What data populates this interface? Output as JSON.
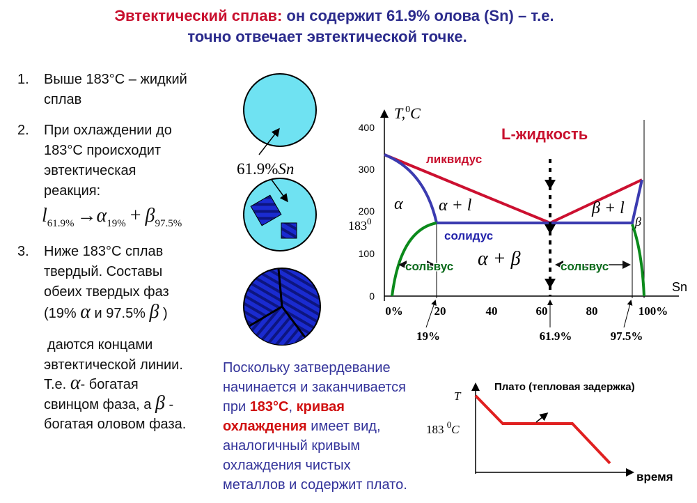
{
  "title": {
    "line1_red": "Эвтектический сплав:",
    "line1_blue": "он содержит 61.9% олова (Sn) – т.е.",
    "line2": "точно отвечает эвтектической точке."
  },
  "list": {
    "item1": {
      "number": "1.",
      "lines": [
        "Выше 183°С – жидкий",
        "сплав"
      ]
    },
    "item2": {
      "number": "2.",
      "lines": [
        "При охлаждении до",
        "183°С происходит",
        "эвтектическая",
        "реакция:"
      ]
    },
    "formula": {
      "liquid": "l",
      "liquid_sub": "61.9%",
      "arrow": "→",
      "alpha": "α",
      "alpha_sub": "19%",
      "plus": "+",
      "beta": "β",
      "beta_sub": "97.5%"
    },
    "item3": {
      "number": "3.",
      "lines": [
        "Ниже 183°С сплав",
        "твердый. Составы",
        "обеих твердых фаз"
      ],
      "composition": [
        "(19%",
        "α",
        "и 97.5%",
        "β",
        ")"
      ]
    },
    "continuation": {
      "lines": [
        "даются концами",
        "эвтектической линии."
      ],
      "line3": [
        "Т.е.",
        "α",
        "- богатая"
      ],
      "line4": [
        "свинцом фаза, а",
        "β",
        "-"
      ],
      "line5": "богатая оловом фаза."
    }
  },
  "micro_label": {
    "composition": "61.9%",
    "element": "Sn"
  },
  "phase_diagram": {
    "y_axis_label": {
      "symbol": "T,",
      "degree": "0",
      "unit": "C"
    },
    "y_ticks": [
      "400",
      "300",
      "200",
      "100",
      "0"
    ],
    "eutectic_temperature": {
      "value": "183",
      "degree": "0"
    },
    "x_ticks": [
      "0%",
      "20",
      "40",
      "60",
      "80",
      "100%"
    ],
    "x_axis_label": "Sn",
    "markers": [
      "19%",
      "61.9%",
      "97.5%"
    ],
    "labels": {
      "liquid": "L-жидкость",
      "liquidus": "ликвидус",
      "solidus": "солидус",
      "solvus_left": "сольвус",
      "solvus_right": "сольвус",
      "alpha": "α",
      "alpha_liquid": "α + l",
      "beta_liquid": "β + l",
      "beta": "β",
      "alpha_beta": "α + β"
    }
  },
  "explanation": {
    "line1": "Поскольку затвердевание",
    "line2": "начинается и заканчивается",
    "line3": [
      "при",
      "183°С",
      ",",
      "кривая"
    ],
    "line4": [
      "охлаждения",
      "имеет вид,"
    ],
    "line5": "аналогичный кривым",
    "line6": "охлаждения чистых",
    "line7": "металлов и содержит плато."
  },
  "cooling_curve": {
    "title": "Плато (тепловая задержка)",
    "y_label": "T",
    "temperature": {
      "value": "183",
      "degree": "0",
      "unit": "C"
    },
    "x_label": "время"
  }
}
